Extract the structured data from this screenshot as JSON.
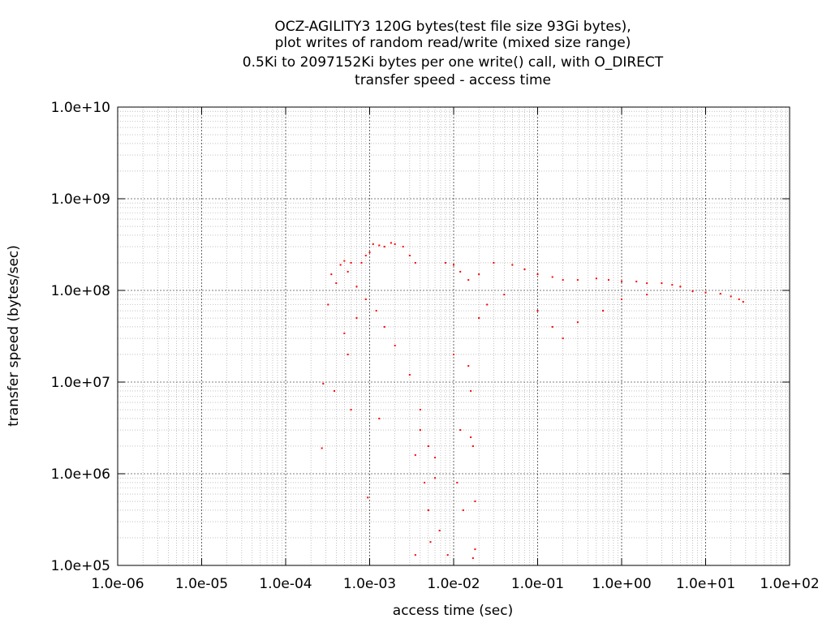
{
  "chart_data": {
    "type": "scatter",
    "title_lines": [
      "OCZ-AGILITY3 120G bytes(test file size 93Gi bytes),",
      "plot writes of random read/write (mixed size range)",
      "0.5Ki to 2097152Ki bytes per one write() call, with O_DIRECT",
      "transfer speed - access time"
    ],
    "xlabel": "access time (sec)",
    "ylabel": "transfer speed (bytes/sec)",
    "x_scale": "log",
    "y_scale": "log",
    "xlim": [
      1e-06,
      100
    ],
    "ylim": [
      100000,
      10000000000
    ],
    "x_ticks": [
      {
        "value": 1e-06,
        "label": "1.0e-06"
      },
      {
        "value": 1e-05,
        "label": "1.0e-05"
      },
      {
        "value": 0.0001,
        "label": "1.0e-04"
      },
      {
        "value": 0.001,
        "label": "1.0e-03"
      },
      {
        "value": 0.01,
        "label": "1.0e-02"
      },
      {
        "value": 0.1,
        "label": "1.0e-01"
      },
      {
        "value": 1,
        "label": "1.0e+00"
      },
      {
        "value": 10,
        "label": "1.0e+01"
      },
      {
        "value": 100,
        "label": "1.0e+02"
      }
    ],
    "y_ticks": [
      {
        "value": 100000,
        "label": "1.0e+05"
      },
      {
        "value": 1000000,
        "label": "1.0e+06"
      },
      {
        "value": 10000000,
        "label": "1.0e+07"
      },
      {
        "value": 100000000,
        "label": "1.0e+08"
      },
      {
        "value": 1000000000,
        "label": "1.0e+09"
      },
      {
        "value": 10000000000,
        "label": "1.0e+10"
      }
    ],
    "grid": true,
    "legend": "none",
    "point_color": "#ff0000",
    "series": [
      {
        "points": [
          [
            0.00028,
            9600000.0
          ],
          [
            0.00032,
            70000000.0
          ],
          [
            0.00035,
            150000000.0
          ],
          [
            0.0004,
            120000000.0
          ],
          [
            0.00045,
            190000000.0
          ],
          [
            0.0005,
            210000000.0
          ],
          [
            0.00055,
            160000000.0
          ],
          [
            0.0006,
            200000000.0
          ],
          [
            0.0007,
            110000000.0
          ],
          [
            0.0008,
            200000000.0
          ],
          [
            0.0009,
            240000000.0
          ],
          [
            0.001,
            260000000.0
          ],
          [
            0.0011,
            320000000.0
          ],
          [
            0.0013,
            310000000.0
          ],
          [
            0.0015,
            300000000.0
          ],
          [
            0.0018,
            330000000.0
          ],
          [
            0.002,
            320000000.0
          ],
          [
            0.0025,
            300000000.0
          ],
          [
            0.003,
            240000000.0
          ],
          [
            0.0035,
            200000000.0
          ],
          [
            0.0005,
            34000000.0
          ],
          [
            0.0007,
            50000000.0
          ],
          [
            0.0009,
            80000000.0
          ],
          [
            0.0012,
            60000000.0
          ],
          [
            0.0015,
            40000000.0
          ],
          [
            0.002,
            25000000.0
          ],
          [
            0.003,
            12000000.0
          ],
          [
            0.004,
            5000000.0
          ],
          [
            0.005,
            2000000.0
          ],
          [
            0.006,
            1500000.0
          ],
          [
            0.00055,
            20000000.0
          ],
          [
            0.0006,
            5000000.0
          ],
          [
            0.00038,
            8000000.0
          ],
          [
            0.00027,
            1900000.0
          ],
          [
            0.00095,
            550000.0
          ],
          [
            0.0013,
            4000000.0
          ],
          [
            0.0035,
            1600000.0
          ],
          [
            0.0045,
            800000.0
          ],
          [
            0.0053,
            180000.0
          ],
          [
            0.0068,
            240000.0
          ],
          [
            0.0085,
            130000.0
          ],
          [
            0.006,
            900000.0
          ],
          [
            0.005,
            400000.0
          ],
          [
            0.0035,
            130000.0
          ],
          [
            0.004,
            3000000.0
          ],
          [
            0.008,
            200000000.0
          ],
          [
            0.01,
            190000000.0
          ],
          [
            0.012,
            160000000.0
          ],
          [
            0.015,
            130000000.0
          ],
          [
            0.02,
            150000000.0
          ],
          [
            0.03,
            200000000.0
          ],
          [
            0.05,
            190000000.0
          ],
          [
            0.07,
            170000000.0
          ],
          [
            0.1,
            150000000.0
          ],
          [
            0.15,
            140000000.0
          ],
          [
            0.2,
            130000000.0
          ],
          [
            0.3,
            130000000.0
          ],
          [
            0.5,
            135000000.0
          ],
          [
            0.7,
            130000000.0
          ],
          [
            1.0,
            125000000.0
          ],
          [
            1.5,
            125000000.0
          ],
          [
            2.0,
            120000000.0
          ],
          [
            3.0,
            120000000.0
          ],
          [
            4.0,
            115000000.0
          ],
          [
            5.0,
            110000000.0
          ],
          [
            7.0,
            98000000.0
          ],
          [
            10,
            95000000.0
          ],
          [
            15,
            92000000.0
          ],
          [
            20,
            86000000.0
          ],
          [
            25,
            80000000.0
          ],
          [
            28,
            75000000.0
          ],
          [
            0.016,
            8000000.0
          ],
          [
            0.017,
            2000000.0
          ],
          [
            0.018,
            500000.0
          ],
          [
            0.018,
            150000.0
          ],
          [
            0.017,
            120000.0
          ],
          [
            0.016,
            2500000.0
          ],
          [
            0.015,
            15000000.0
          ],
          [
            0.02,
            50000000.0
          ],
          [
            0.025,
            70000000.0
          ],
          [
            0.04,
            90000000.0
          ],
          [
            0.1,
            60000000.0
          ],
          [
            0.15,
            40000000.0
          ],
          [
            0.2,
            30000000.0
          ],
          [
            0.3,
            45000000.0
          ],
          [
            0.6,
            60000000.0
          ],
          [
            1.0,
            80000000.0
          ],
          [
            2.0,
            90000000.0
          ],
          [
            0.012,
            3000000.0
          ],
          [
            0.011,
            800000.0
          ],
          [
            0.013,
            400000.0
          ],
          [
            0.01,
            20000000.0
          ]
        ]
      }
    ]
  }
}
